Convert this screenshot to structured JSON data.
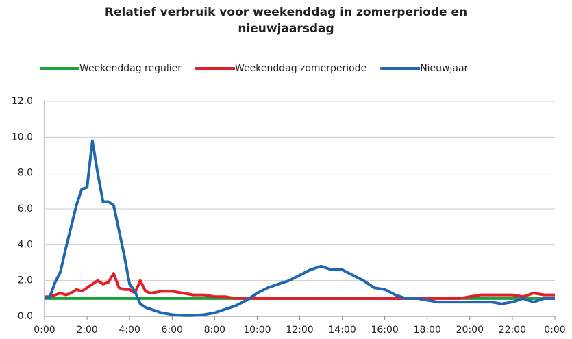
{
  "chart_data": {
    "type": "line",
    "title": "Relatief verbruik voor weekenddag in zomerperiode en nieuwjaarsdag",
    "x": [
      0,
      0.25,
      0.5,
      0.75,
      1,
      1.25,
      1.5,
      1.75,
      2,
      2.25,
      2.5,
      2.75,
      3,
      3.25,
      3.5,
      3.75,
      4,
      4.25,
      4.5,
      4.75,
      5,
      5.5,
      6,
      6.5,
      7,
      7.5,
      8,
      8.5,
      9,
      9.5,
      10,
      10.5,
      11,
      11.5,
      12,
      12.5,
      13,
      13.5,
      14,
      14.5,
      15,
      15.5,
      16,
      16.5,
      17,
      17.5,
      18,
      18.5,
      19,
      19.5,
      20,
      20.5,
      21,
      21.5,
      22,
      22.5,
      23,
      23.5,
      24
    ],
    "series": [
      {
        "name": "Weekenddag regulier",
        "color": "#1aa33c",
        "values": [
          1,
          1,
          1,
          1,
          1,
          1,
          1,
          1,
          1,
          1,
          1,
          1,
          1,
          1,
          1,
          1,
          1,
          1,
          1,
          1,
          1,
          1,
          1,
          1,
          1,
          1,
          1,
          1,
          1,
          1,
          1,
          1,
          1,
          1,
          1,
          1,
          1,
          1,
          1,
          1,
          1,
          1,
          1,
          1,
          1,
          1,
          1,
          1,
          1,
          1,
          1,
          1,
          1,
          1,
          1,
          1,
          1,
          1,
          1
        ]
      },
      {
        "name": "Weekenddag zomerperiode",
        "color": "#e3202a",
        "values": [
          1.1,
          1.1,
          1.2,
          1.3,
          1.2,
          1.3,
          1.5,
          1.4,
          1.6,
          1.8,
          2.0,
          1.8,
          1.9,
          2.4,
          1.6,
          1.5,
          1.5,
          1.3,
          2.0,
          1.4,
          1.3,
          1.4,
          1.4,
          1.3,
          1.2,
          1.2,
          1.1,
          1.1,
          1.0,
          1.0,
          1,
          1,
          1,
          1,
          1,
          1,
          1,
          1,
          1,
          1,
          1,
          1,
          1,
          1,
          1,
          1,
          1,
          1,
          1,
          1.0,
          1.1,
          1.2,
          1.2,
          1.2,
          1.2,
          1.1,
          1.3,
          1.2,
          1.2
        ]
      },
      {
        "name": "Nieuwjaar",
        "color": "#1f67b1",
        "values": [
          1.0,
          1.1,
          1.9,
          2.5,
          3.8,
          5.0,
          6.2,
          7.1,
          7.2,
          9.8,
          8.0,
          6.4,
          6.4,
          6.2,
          4.8,
          3.4,
          1.8,
          1.4,
          0.7,
          0.5,
          0.4,
          0.2,
          0.1,
          0.05,
          0.05,
          0.1,
          0.2,
          0.4,
          0.6,
          0.9,
          1.3,
          1.6,
          1.8,
          2.0,
          2.3,
          2.6,
          2.8,
          2.6,
          2.6,
          2.3,
          2.0,
          1.6,
          1.5,
          1.2,
          1.0,
          1.0,
          0.9,
          0.8,
          0.8,
          0.8,
          0.8,
          0.8,
          0.8,
          0.7,
          0.8,
          1.0,
          0.8,
          1.0,
          1.0
        ]
      }
    ],
    "xlim": [
      0,
      24
    ],
    "xticks": [
      {
        "value": 0,
        "label": "0:00"
      },
      {
        "value": 2,
        "label": "2:00"
      },
      {
        "value": 4,
        "label": "4:00"
      },
      {
        "value": 6,
        "label": "6:00"
      },
      {
        "value": 8,
        "label": "8:00"
      },
      {
        "value": 10,
        "label": "10:00"
      },
      {
        "value": 12,
        "label": "12:00"
      },
      {
        "value": 14,
        "label": "14:00"
      },
      {
        "value": 16,
        "label": "16:00"
      },
      {
        "value": 18,
        "label": "18:00"
      },
      {
        "value": 20,
        "label": "20:00"
      },
      {
        "value": 22,
        "label": "22:00"
      },
      {
        "value": 24,
        "label": "0:00"
      }
    ],
    "ylim": [
      0,
      12
    ],
    "yticks": [
      {
        "value": 0,
        "label": "0.0"
      },
      {
        "value": 2,
        "label": "2.0"
      },
      {
        "value": 4,
        "label": "4.0"
      },
      {
        "value": 6,
        "label": "6.0"
      },
      {
        "value": 8,
        "label": "8.0"
      },
      {
        "value": 10,
        "label": "10.0"
      },
      {
        "value": 12,
        "label": "12.0"
      }
    ],
    "grid": true,
    "legend": "top"
  }
}
